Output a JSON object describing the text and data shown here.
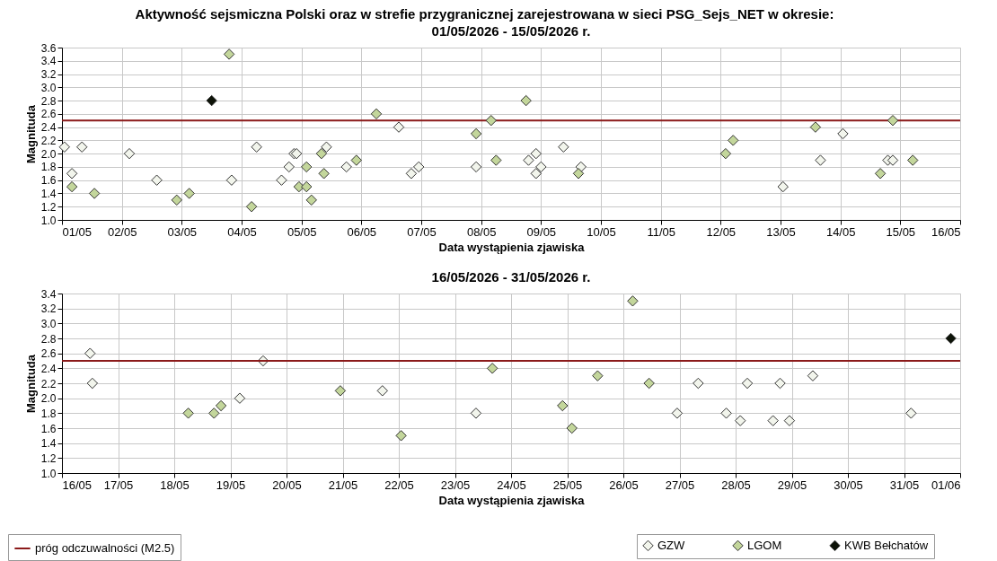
{
  "chart_data": [
    {
      "type": "scatter",
      "title": "Aktywność sejsmiczna Polski oraz w strefie przygranicznej zarejestrowana w sieci PSG_Sejs_NET w okresie:",
      "subtitle": "01/05/2026 - 15/05/2026 r.",
      "xlabel": "Data wystąpienia zjawiska",
      "ylabel": "Magnituda",
      "marker": "diamond",
      "grid": true,
      "legend": "bottom",
      "xlim": [
        "2026-05-01",
        "2026-05-16"
      ],
      "xticks": [
        {
          "value": "2026-05-01",
          "label": "01/05"
        },
        {
          "value": "2026-05-02",
          "label": "02/05"
        },
        {
          "value": "2026-05-03",
          "label": "03/05"
        },
        {
          "value": "2026-05-04",
          "label": "04/05"
        },
        {
          "value": "2026-05-05",
          "label": "05/05"
        },
        {
          "value": "2026-05-06",
          "label": "06/05"
        },
        {
          "value": "2026-05-07",
          "label": "07/05"
        },
        {
          "value": "2026-05-08",
          "label": "08/05"
        },
        {
          "value": "2026-05-09",
          "label": "09/05"
        },
        {
          "value": "2026-05-10",
          "label": "10/05"
        },
        {
          "value": "2026-05-11",
          "label": "11/05"
        },
        {
          "value": "2026-05-12",
          "label": "12/05"
        },
        {
          "value": "2026-05-13",
          "label": "13/05"
        },
        {
          "value": "2026-05-14",
          "label": "14/05"
        },
        {
          "value": "2026-05-15",
          "label": "15/05"
        },
        {
          "value": "2026-05-16",
          "label": "16/05"
        }
      ],
      "ylim": [
        1.0,
        3.6
      ],
      "yticks": [
        {
          "value": 1.0,
          "label": "1.0"
        },
        1.2,
        1.4,
        1.6,
        1.8,
        {
          "value": 2.0,
          "label": "2.0"
        },
        2.2,
        2.4,
        2.6,
        2.8,
        {
          "value": 3.0,
          "label": "3.0"
        },
        3.2,
        3.4,
        3.6
      ],
      "ref_lines": [
        {
          "axis": "y",
          "value": 2.5,
          "color": "#8b1a1a"
        }
      ],
      "series": [
        {
          "name": "GZW",
          "color": "#f2f5ec",
          "x": [
            "2026-05-01T01:00",
            "2026-05-01T04:00",
            "2026-05-01T08:00",
            "2026-05-02T03:00",
            "2026-05-02T14:00",
            "2026-05-03T20:00",
            "2026-05-04T06:00",
            "2026-05-04T16:00",
            "2026-05-04T19:00",
            "2026-05-04T21:00",
            "2026-05-04T22:00",
            "2026-05-05T10:00",
            "2026-05-05T18:00",
            "2026-05-06T15:00",
            "2026-05-06T20:00",
            "2026-05-06T23:00",
            "2026-05-07T22:00",
            "2026-05-08T19:00",
            "2026-05-08T22:00",
            "2026-05-08T22:00",
            "2026-05-09T00:00",
            "2026-05-09T09:00",
            "2026-05-09T16:00",
            "2026-05-13T01:00",
            "2026-05-13T16:00",
            "2026-05-14T01:00",
            "2026-05-14T19:00",
            "2026-05-14T21:00"
          ],
          "values": [
            2.1,
            1.7,
            2.1,
            2.0,
            1.6,
            1.6,
            2.1,
            1.6,
            1.8,
            2.0,
            2.0,
            2.1,
            1.8,
            2.4,
            1.7,
            1.8,
            1.8,
            1.9,
            2.0,
            1.7,
            1.8,
            2.1,
            1.8,
            1.5,
            1.9,
            2.3,
            1.9,
            1.9
          ]
        },
        {
          "name": "LGOM",
          "color": "#c3d69b",
          "x": [
            "2026-05-01T04:00",
            "2026-05-01T13:00",
            "2026-05-02T22:00",
            "2026-05-03T03:00",
            "2026-05-03T19:00",
            "2026-05-04T04:00",
            "2026-05-04T23:00",
            "2026-05-05T02:00",
            "2026-05-05T02:00",
            "2026-05-05T04:00",
            "2026-05-05T08:00",
            "2026-05-05T09:00",
            "2026-05-05T22:00",
            "2026-05-06T06:00",
            "2026-05-07T22:00",
            "2026-05-08T04:00",
            "2026-05-08T06:00",
            "2026-05-08T18:00",
            "2026-05-09T15:00",
            "2026-05-12T02:00",
            "2026-05-12T05:00",
            "2026-05-13T14:00",
            "2026-05-14T16:00",
            "2026-05-14T21:00",
            "2026-05-15T05:00"
          ],
          "values": [
            1.5,
            1.4,
            1.3,
            1.4,
            3.5,
            1.2,
            1.5,
            1.5,
            1.8,
            1.3,
            2.0,
            1.7,
            1.9,
            2.6,
            2.3,
            2.5,
            1.9,
            2.8,
            1.7,
            2.0,
            2.2,
            2.4,
            1.7,
            2.5,
            1.9
          ]
        },
        {
          "name": "KWB Bełchatów",
          "color": "#0d1308",
          "x": [
            "2026-05-03T12:00"
          ],
          "values": [
            2.8
          ]
        }
      ]
    },
    {
      "type": "scatter",
      "title": "16/05/2026 - 31/05/2026 r.",
      "xlabel": "Data wystąpienia zjawiska",
      "ylabel": "Magnituda",
      "marker": "diamond",
      "grid": true,
      "legend": "bottom",
      "xlim": [
        "2026-05-16",
        "2026-06-01"
      ],
      "xticks": [
        {
          "value": "2026-05-16",
          "label": "16/05"
        },
        {
          "value": "2026-05-17",
          "label": "17/05"
        },
        {
          "value": "2026-05-18",
          "label": "18/05"
        },
        {
          "value": "2026-05-19",
          "label": "19/05"
        },
        {
          "value": "2026-05-20",
          "label": "20/05"
        },
        {
          "value": "2026-05-21",
          "label": "21/05"
        },
        {
          "value": "2026-05-22",
          "label": "22/05"
        },
        {
          "value": "2026-05-23",
          "label": "23/05"
        },
        {
          "value": "2026-05-24",
          "label": "24/05"
        },
        {
          "value": "2026-05-25",
          "label": "25/05"
        },
        {
          "value": "2026-05-26",
          "label": "26/05"
        },
        {
          "value": "2026-05-27",
          "label": "27/05"
        },
        {
          "value": "2026-05-28",
          "label": "28/05"
        },
        {
          "value": "2026-05-29",
          "label": "29/05"
        },
        {
          "value": "2026-05-30",
          "label": "30/05"
        },
        {
          "value": "2026-05-31",
          "label": "31/05"
        },
        {
          "value": "2026-06-01",
          "label": "01/06"
        }
      ],
      "ylim": [
        1.0,
        3.4
      ],
      "yticks": [
        {
          "value": 1.0,
          "label": "1.0"
        },
        1.2,
        1.4,
        1.6,
        1.8,
        {
          "value": 2.0,
          "label": "2.0"
        },
        2.2,
        2.4,
        2.6,
        2.8,
        {
          "value": 3.0,
          "label": "3.0"
        },
        3.2,
        3.4
      ],
      "ref_lines": [
        {
          "axis": "y",
          "value": 2.5,
          "label": "próg odczuwalności (M2.5)",
          "color": "#8b1a1a"
        }
      ],
      "series": [
        {
          "name": "GZW",
          "color": "#f2f5ec",
          "x": [
            "2026-05-16T12:00",
            "2026-05-16T13:00",
            "2026-05-19T04:00",
            "2026-05-19T14:00",
            "2026-05-21T17:00",
            "2026-05-23T09:00",
            "2026-05-26T23:00",
            "2026-05-27T08:00",
            "2026-05-27T20:00",
            "2026-05-28T02:00",
            "2026-05-28T05:00",
            "2026-05-28T16:00",
            "2026-05-28T19:00",
            "2026-05-28T23:00",
            "2026-05-29T09:00",
            "2026-05-31T03:00"
          ],
          "values": [
            2.6,
            2.2,
            2.0,
            2.5,
            2.1,
            1.8,
            1.8,
            2.2,
            1.8,
            1.7,
            2.2,
            1.7,
            2.2,
            1.7,
            2.3,
            1.8
          ]
        },
        {
          "name": "LGOM",
          "color": "#c3d69b",
          "x": [
            "2026-05-18T06:00",
            "2026-05-18T17:00",
            "2026-05-18T20:00",
            "2026-05-20T23:00",
            "2026-05-22T01:00",
            "2026-05-23T16:00",
            "2026-05-24T22:00",
            "2026-05-25T02:00",
            "2026-05-25T13:00",
            "2026-05-26T04:00",
            "2026-05-26T11:00"
          ],
          "values": [
            1.8,
            1.8,
            1.9,
            2.1,
            1.5,
            2.4,
            1.9,
            1.6,
            2.3,
            3.3,
            2.2
          ]
        },
        {
          "name": "KWB Bełchatów",
          "color": "#0d1308",
          "x": [
            "2026-05-31T20:00"
          ],
          "values": [
            2.8
          ]
        }
      ]
    }
  ]
}
